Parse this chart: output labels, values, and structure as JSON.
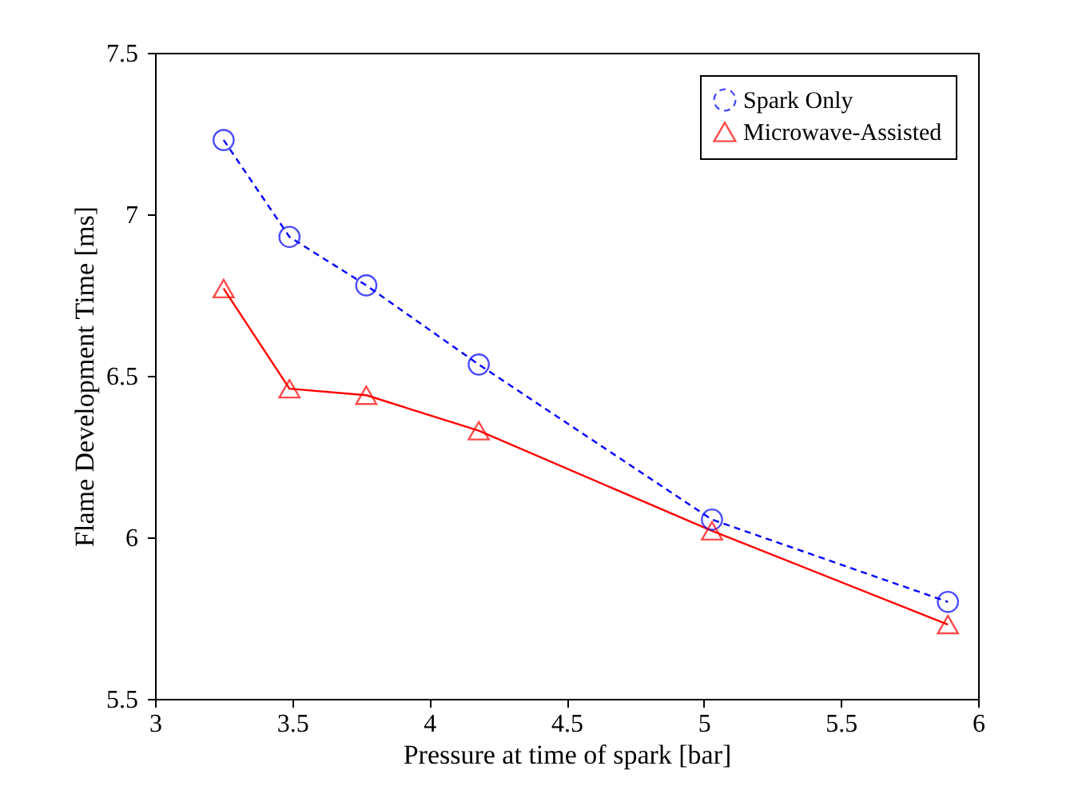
{
  "chart_data": {
    "type": "line",
    "xlabel": "Pressure at time of spark [bar]",
    "ylabel": "Flame Development Time [ms]",
    "x": [
      3.25,
      3.49,
      3.77,
      4.18,
      5.03,
      5.89
    ],
    "series": [
      {
        "name": "Spark Only",
        "color": "#0000ff",
        "marker": "circle",
        "line_style": "dashed",
        "values": [
          7.23,
          6.93,
          6.78,
          6.535,
          6.055,
          5.8
        ]
      },
      {
        "name": "Microwave-Assisted",
        "color": "#ff0000",
        "marker": "triangle",
        "line_style": "solid",
        "values": [
          6.77,
          6.46,
          6.44,
          6.33,
          6.02,
          5.73
        ]
      }
    ],
    "xlim": [
      3,
      6
    ],
    "xticks": [
      3,
      3.5,
      4,
      4.5,
      5,
      5.5,
      6
    ],
    "ylim": [
      5.5,
      7.5
    ],
    "yticks": [
      5.5,
      6,
      6.5,
      7,
      7.5
    ],
    "grid": false,
    "legend": "top right"
  }
}
